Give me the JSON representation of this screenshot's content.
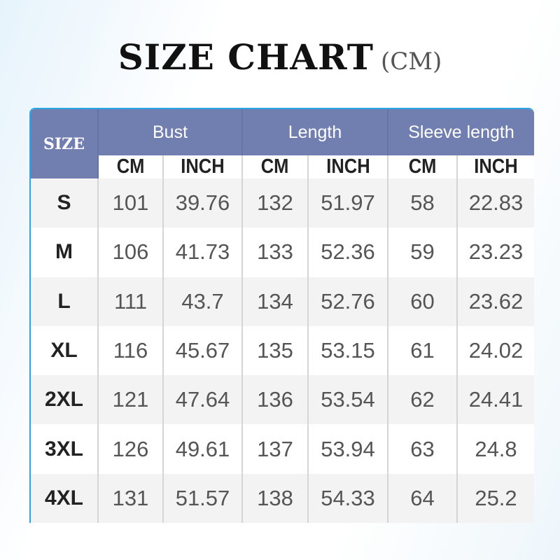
{
  "title": {
    "main": "SIZE CHART",
    "unit": "(CM)"
  },
  "colors": {
    "header_bg": "#717eb0",
    "border_accent": "#2aa6e6",
    "row_alt": "#f3f3f3"
  },
  "chart_data": {
    "type": "table",
    "title": "SIZE CHART (CM)",
    "size_header": "SIZE",
    "groups": [
      "Bust",
      "Length",
      "Sleeve length"
    ],
    "subheaders": [
      "CM",
      "INCH",
      "CM",
      "INCH",
      "CM",
      "INCH"
    ],
    "rows": [
      {
        "size": "S",
        "values": [
          "101",
          "39.76",
          "132",
          "51.97",
          "58",
          "22.83"
        ]
      },
      {
        "size": "M",
        "values": [
          "106",
          "41.73",
          "133",
          "52.36",
          "59",
          "23.23"
        ]
      },
      {
        "size": "L",
        "values": [
          "111",
          "43.7",
          "134",
          "52.76",
          "60",
          "23.62"
        ]
      },
      {
        "size": "XL",
        "values": [
          "116",
          "45.67",
          "135",
          "53.15",
          "61",
          "24.02"
        ]
      },
      {
        "size": "2XL",
        "values": [
          "121",
          "47.64",
          "136",
          "53.54",
          "62",
          "24.41"
        ]
      },
      {
        "size": "3XL",
        "values": [
          "126",
          "49.61",
          "137",
          "53.94",
          "63",
          "24.8"
        ]
      },
      {
        "size": "4XL",
        "values": [
          "131",
          "51.57",
          "138",
          "54.33",
          "64",
          "25.2"
        ]
      }
    ]
  }
}
